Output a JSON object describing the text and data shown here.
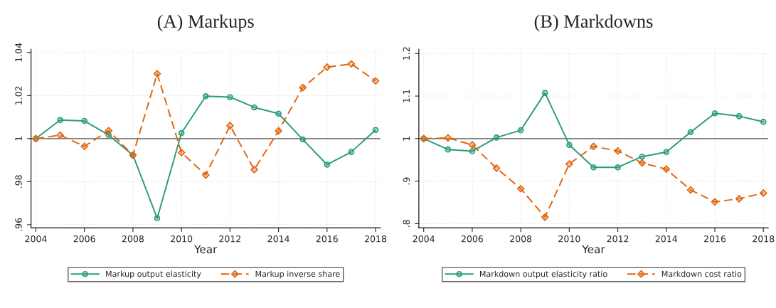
{
  "chart_data": [
    {
      "type": "line",
      "title": "(A) Markups",
      "xlabel": "Year",
      "x": [
        2004,
        2005,
        2006,
        2007,
        2008,
        2009,
        2010,
        2011,
        2012,
        2013,
        2014,
        2015,
        2016,
        2017,
        2018
      ],
      "series": [
        {
          "name": "Markup output elasticity",
          "color": "#2a9d78",
          "marker": "circle",
          "line_style": "solid",
          "values": [
            1.0,
            1.0086,
            1.0082,
            1.0017,
            0.9923,
            0.963,
            1.0026,
            1.0197,
            1.0193,
            1.0145,
            1.0116,
            0.9996,
            0.9879,
            0.9938,
            1.004
          ]
        },
        {
          "name": "Markup inverse share",
          "color": "#e0640f",
          "marker": "diamond",
          "line_style": "dashed",
          "values": [
            1.0,
            1.0016,
            0.9964,
            1.0037,
            0.9923,
            1.0301,
            0.9935,
            0.9831,
            1.006,
            0.9856,
            1.0036,
            1.0237,
            1.0332,
            1.0347,
            1.0268
          ]
        }
      ],
      "xlim": [
        2003.8,
        2018.2
      ],
      "xticks": [
        2004,
        2006,
        2008,
        2010,
        2012,
        2014,
        2016,
        2018
      ],
      "ylim": [
        0.9585,
        1.0415
      ],
      "yticks": [
        {
          "value": 0.96,
          "label": ".96"
        },
        {
          "value": 0.98,
          "label": ".98"
        },
        1,
        1.02,
        1.04
      ],
      "ref_lines": [
        {
          "axis": "y",
          "value": 1,
          "color": "#808080"
        }
      ],
      "grid": true,
      "legend": "bottom"
    },
    {
      "type": "line",
      "title": "(B) Markdowns",
      "xlabel": "Year",
      "x": [
        2004,
        2005,
        2006,
        2007,
        2008,
        2009,
        2010,
        2011,
        2012,
        2013,
        2014,
        2015,
        2016,
        2017,
        2018
      ],
      "series": [
        {
          "name": "Markdown output elasticity ratio",
          "color": "#2a9d78",
          "marker": "circle",
          "line_style": "solid",
          "values": [
            1.0,
            0.9744,
            0.9704,
            1.0025,
            1.0197,
            1.1074,
            0.9852,
            0.9325,
            0.9325,
            0.9576,
            0.9685,
            1.0153,
            1.0596,
            1.0527,
            1.0394
          ]
        },
        {
          "name": "Markdown cost ratio",
          "color": "#e0640f",
          "marker": "diamond",
          "line_style": "dashed",
          "values": [
            1.0,
            1.0015,
            0.9852,
            0.9305,
            0.8823,
            0.8153,
            0.9404,
            0.9818,
            0.9709,
            0.9429,
            0.9281,
            0.8793,
            0.8512,
            0.8586,
            0.8719
          ]
        }
      ],
      "xlim": [
        2003.8,
        2018.2
      ],
      "xticks": [
        2004,
        2006,
        2008,
        2010,
        2012,
        2014,
        2016,
        2018
      ],
      "ylim": [
        0.79,
        1.21
      ],
      "yticks": [
        {
          "value": 0.8,
          "label": ".8"
        },
        {
          "value": 0.9,
          "label": ".9"
        },
        1,
        1.1,
        1.2
      ],
      "ref_lines": [
        {
          "axis": "y",
          "value": 1,
          "color": "#808080"
        }
      ],
      "grid": true,
      "legend": "bottom"
    }
  ]
}
